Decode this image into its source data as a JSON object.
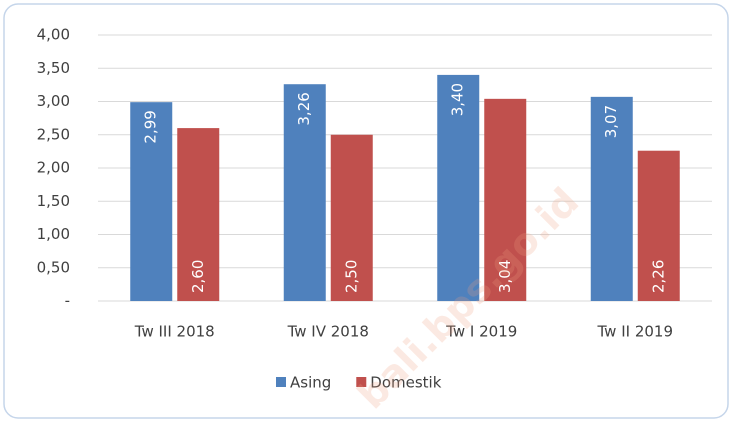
{
  "chart_data": {
    "type": "bar",
    "categories": [
      "Tw III 2018",
      "Tw IV 2018",
      "Tw I 2019",
      "Tw II 2019"
    ],
    "series": [
      {
        "name": "Asing",
        "color": "#4f81bd",
        "values": [
          2.99,
          3.26,
          3.4,
          3.07
        ],
        "value_labels": [
          "2,99",
          "3,26",
          "3,40",
          "3,07"
        ]
      },
      {
        "name": "Domestik",
        "color": "#c0504d",
        "values": [
          2.6,
          2.5,
          3.04,
          2.26
        ],
        "value_labels": [
          "2,60",
          "2,50",
          "3,04",
          "2,26"
        ]
      }
    ],
    "ylim": [
      0,
      4
    ],
    "yticks": [
      {
        "value": 0,
        "label": "-"
      },
      {
        "value": 0.5,
        "label": "0,50"
      },
      {
        "value": 1,
        "label": "1,00"
      },
      {
        "value": 1.5,
        "label": "1,50"
      },
      {
        "value": 2,
        "label": "2,00"
      },
      {
        "value": 2.5,
        "label": "2,50"
      },
      {
        "value": 3,
        "label": "3,00"
      },
      {
        "value": 3.5,
        "label": "3,50"
      },
      {
        "value": 4,
        "label": "4,00"
      }
    ],
    "grid": true,
    "legend": "bottom",
    "watermark": "bali.bps.go.id"
  }
}
